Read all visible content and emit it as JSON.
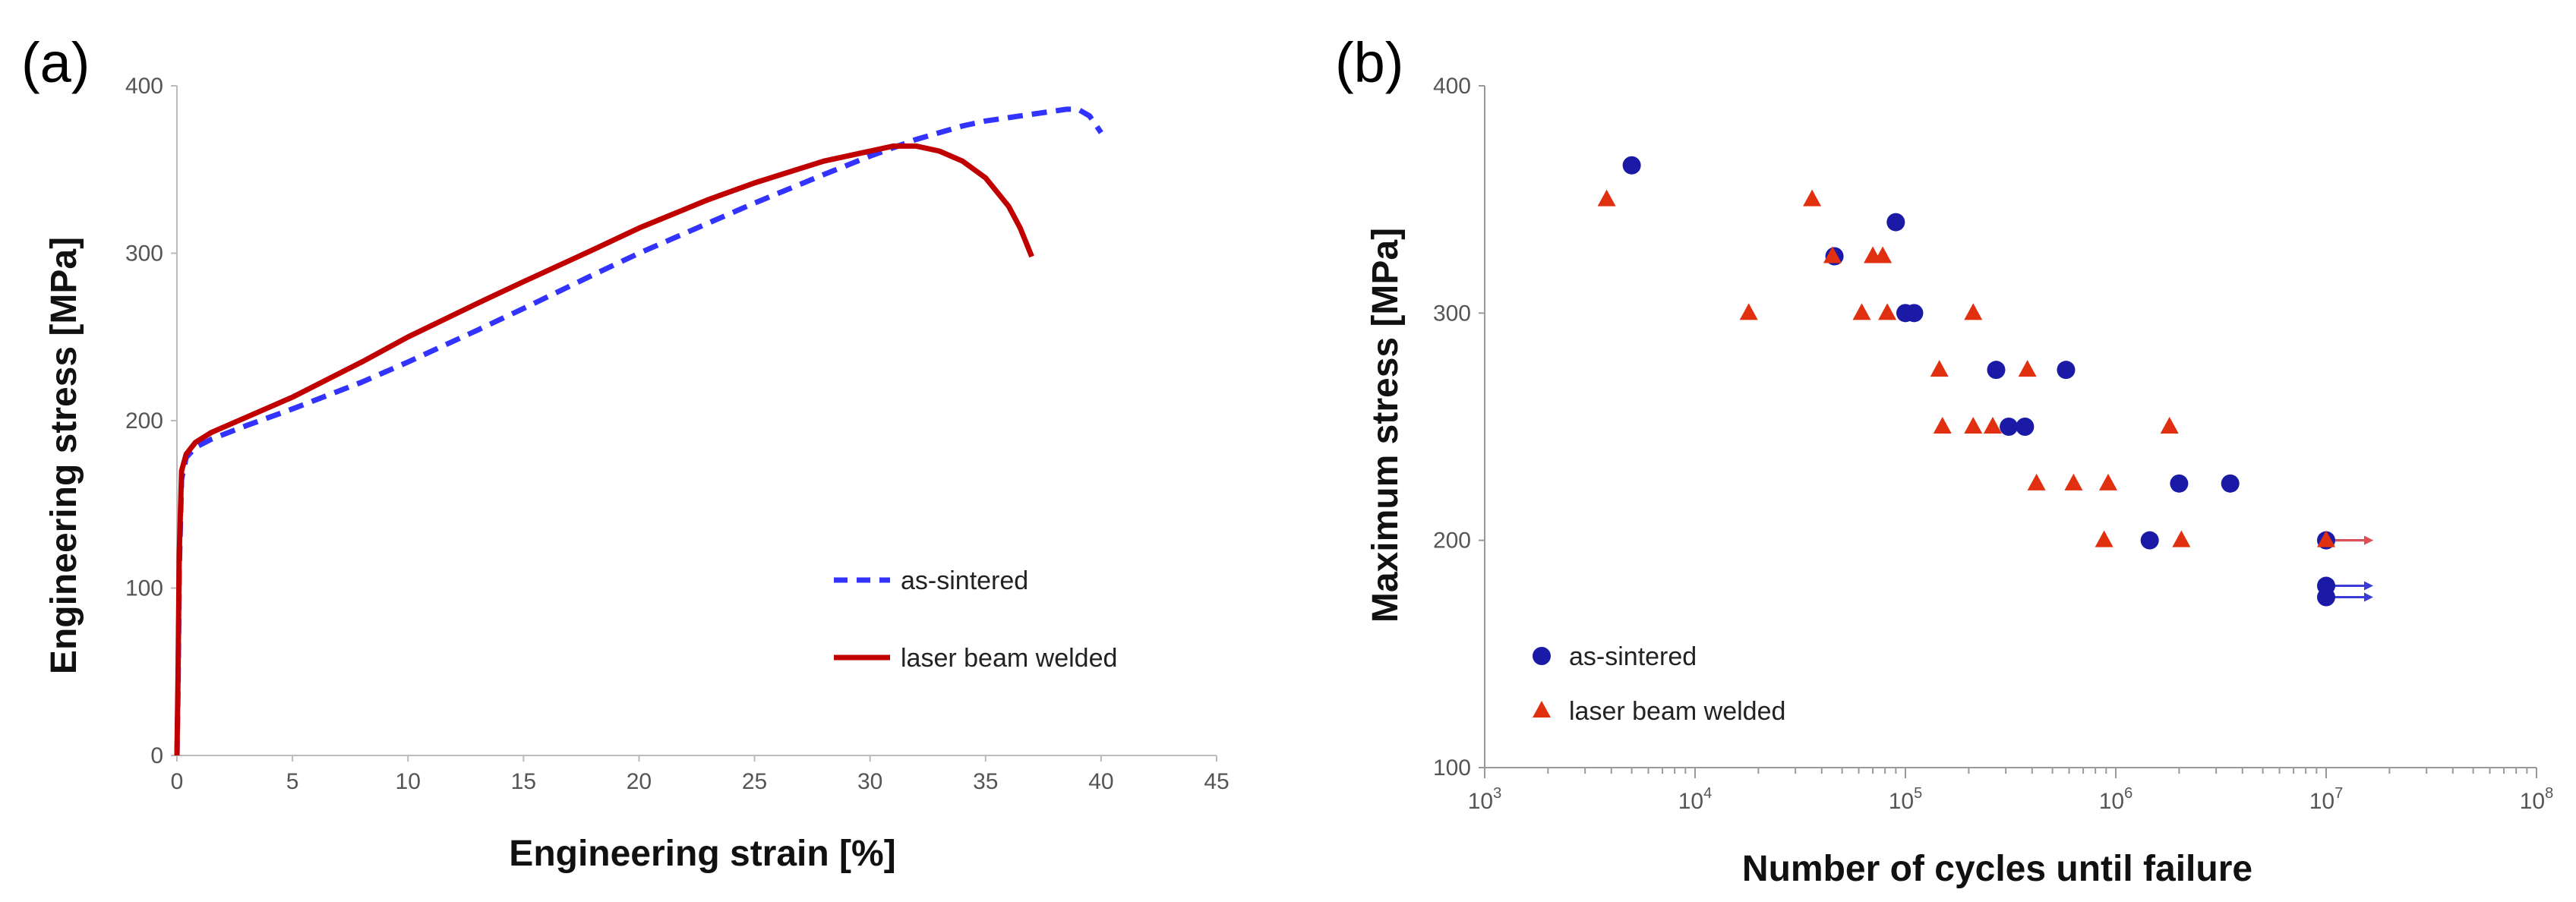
{
  "chart_data": [
    {
      "type": "line",
      "panel_label": "(a)",
      "xlabel": "Engineering strain [%]",
      "ylabel": "Engineering stress [MPa]",
      "xlim": [
        0,
        45
      ],
      "ylim": [
        0,
        400
      ],
      "xticks": [
        "0",
        "5",
        "10",
        "15",
        "20",
        "25",
        "30",
        "35",
        "40",
        "45"
      ],
      "yticks": [
        "0",
        "100",
        "200",
        "300",
        "400"
      ],
      "grid": false,
      "legend_position": "lower-right",
      "series": [
        {
          "name": "as-sintered",
          "color": "#3333ff",
          "style": "dashed",
          "x": [
            0,
            0.05,
            0.1,
            0.2,
            0.4,
            0.8,
            1.5,
            3,
            5,
            8,
            10,
            13,
            15,
            18,
            20,
            23,
            25,
            28,
            30,
            32,
            34,
            35,
            36,
            37,
            38,
            38.5,
            39,
            39.5,
            40
          ],
          "y": [
            0,
            40,
            110,
            165,
            178,
            184,
            189,
            197,
            207,
            223,
            235,
            254,
            267,
            287,
            300,
            318,
            330,
            347,
            358,
            368,
            376,
            379,
            381,
            383,
            385,
            386,
            386,
            382,
            372
          ]
        },
        {
          "name": "laser beam welded",
          "color": "#c00000",
          "style": "solid",
          "x": [
            0,
            0.05,
            0.1,
            0.2,
            0.4,
            0.8,
            1.5,
            3,
            5,
            8,
            10,
            13,
            15,
            18,
            20,
            23,
            25,
            28,
            30,
            31,
            32,
            33,
            34,
            35,
            36,
            36.5,
            37
          ],
          "y": [
            0,
            50,
            120,
            170,
            180,
            187,
            193,
            202,
            214,
            235,
            250,
            270,
            283,
            302,
            315,
            332,
            342,
            355,
            361,
            364,
            364,
            361,
            355,
            345,
            328,
            315,
            298
          ]
        }
      ]
    },
    {
      "type": "scatter",
      "panel_label": "(b)",
      "xlabel": "Number of cycles until failure",
      "ylabel": "Maximum stress [MPa]",
      "xscale": "log",
      "xlim": [
        1000,
        100000000
      ],
      "ylim": [
        100,
        400
      ],
      "xticks": [
        {
          "base": "10",
          "exp": "3"
        },
        {
          "base": "10",
          "exp": "4"
        },
        {
          "base": "10",
          "exp": "5"
        },
        {
          "base": "10",
          "exp": "6"
        },
        {
          "base": "10",
          "exp": "7"
        },
        {
          "base": "10",
          "exp": "8"
        }
      ],
      "yticks": [
        "100",
        "200",
        "300",
        "400"
      ],
      "grid": false,
      "legend_position": "lower-left",
      "runout_note": "arrows indicate run-outs at 10^7 cycles",
      "series": [
        {
          "name": "as-sintered",
          "marker": "circle",
          "color": "#1a1aa6",
          "points": [
            [
              5000,
              365
            ],
            [
              46000,
              325
            ],
            [
              90000,
              340
            ],
            [
              100000,
              300
            ],
            [
              110000,
              300
            ],
            [
              270000,
              275
            ],
            [
              580000,
              275
            ],
            [
              310000,
              250
            ],
            [
              370000,
              250
            ],
            [
              2000000,
              225
            ],
            [
              3500000,
              225
            ],
            [
              1450000,
              200
            ],
            [
              10000000,
              200
            ],
            [
              10000000,
              180
            ],
            [
              10000000,
              175
            ]
          ],
          "runouts": [
            [
              10000000,
              200
            ],
            [
              10000000,
              180
            ],
            [
              10000000,
              175
            ]
          ]
        },
        {
          "name": "laser beam welded",
          "marker": "triangle",
          "color": "#e03010",
          "points": [
            [
              3800,
              350
            ],
            [
              36000,
              350
            ],
            [
              45000,
              325
            ],
            [
              70000,
              325
            ],
            [
              78000,
              325
            ],
            [
              18000,
              300
            ],
            [
              62000,
              300
            ],
            [
              82000,
              300
            ],
            [
              210000,
              300
            ],
            [
              145000,
              275
            ],
            [
              380000,
              275
            ],
            [
              150000,
              250
            ],
            [
              210000,
              250
            ],
            [
              260000,
              250
            ],
            [
              1800000,
              250
            ],
            [
              420000,
              225
            ],
            [
              630000,
              225
            ],
            [
              920000,
              225
            ],
            [
              880000,
              200
            ],
            [
              2050000,
              200
            ],
            [
              10000000,
              200
            ]
          ],
          "runouts": [
            [
              10000000,
              200
            ]
          ]
        }
      ]
    }
  ]
}
